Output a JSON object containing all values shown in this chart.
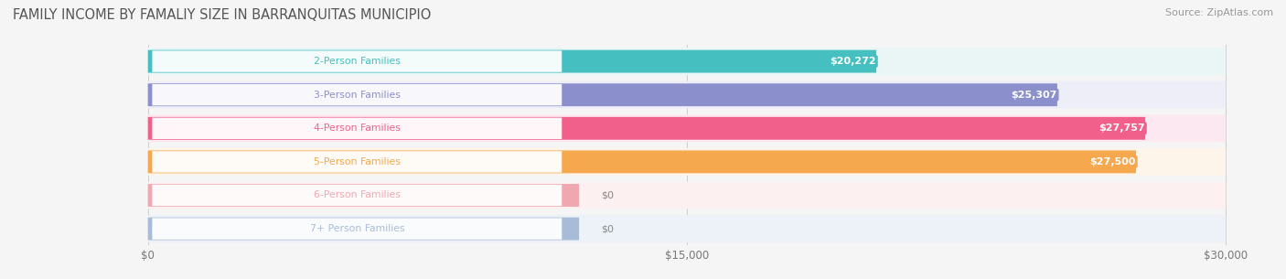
{
  "title": "FAMILY INCOME BY FAMALIY SIZE IN BARRANQUITAS MUNICIPIO",
  "source": "Source: ZipAtlas.com",
  "categories": [
    "2-Person Families",
    "3-Person Families",
    "4-Person Families",
    "5-Person Families",
    "6-Person Families",
    "7+ Person Families"
  ],
  "values": [
    20272,
    25307,
    27757,
    27500,
    0,
    0
  ],
  "bar_colors": [
    "#45bfbf",
    "#8b8fcc",
    "#f0608a",
    "#f5a84e",
    "#f0a8b0",
    "#a8bcd8"
  ],
  "bar_bg_colors": [
    "#eaf6f6",
    "#eeeef8",
    "#fce8f0",
    "#fdf4ea",
    "#fdf0f0",
    "#edf2f8"
  ],
  "max_value": 30000,
  "x_ticks": [
    0,
    15000,
    30000
  ],
  "x_tick_labels": [
    "$0",
    "$15,000",
    "$30,000"
  ],
  "value_labels": [
    "$20,272",
    "$25,307",
    "$27,757",
    "$27,500",
    "$0",
    "$0"
  ],
  "background_color": "#f5f5f5",
  "title_color": "#555555",
  "source_color": "#999999",
  "label_text_color": "#888888"
}
